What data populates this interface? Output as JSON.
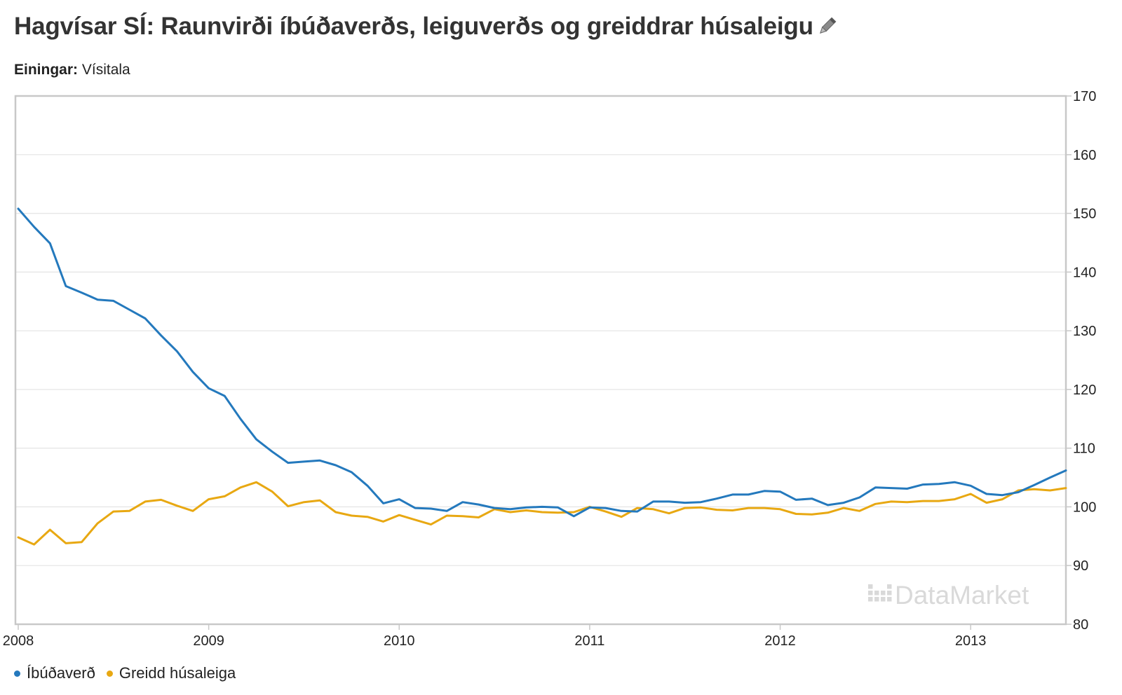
{
  "header": {
    "title": "Hagvísar SÍ: Raunvirði íbúðaverðs, leiguverðs og greiddrar húsaleigu",
    "units_label": "Einingar:",
    "units_value": "Vísitala",
    "edit_icon": "pencil-icon"
  },
  "watermark": {
    "text": "DataMarket",
    "icon": "datamarket-logo-icon"
  },
  "colors": {
    "series_1": "#2479bd",
    "series_2": "#e8a812",
    "grid": "#e6e6e6",
    "frame": "#c8c8c8",
    "watermark": "#d9d9d9"
  },
  "legend": [
    {
      "label": "Íbúðaverð"
    },
    {
      "label": "Greidd húsaleiga"
    }
  ],
  "chart_data": {
    "type": "line",
    "title": "Hagvísar SÍ: Raunvirði íbúðaverðs, leiguverðs og greiddrar húsaleigu",
    "xlabel": "",
    "ylabel": "Vísitala",
    "x_ticks": [
      "2008",
      "2009",
      "2010",
      "2011",
      "2012",
      "2013"
    ],
    "y_ticks": [
      80,
      90,
      100,
      110,
      120,
      130,
      140,
      150,
      160,
      170
    ],
    "ylim": [
      80,
      170
    ],
    "xlim": [
      "2008-01",
      "2013-07"
    ],
    "y_axis_side": "right",
    "grid": true,
    "legend_position": "bottom-left",
    "x": [
      "2008-01",
      "2008-02",
      "2008-03",
      "2008-04",
      "2008-05",
      "2008-06",
      "2008-07",
      "2008-08",
      "2008-09",
      "2008-10",
      "2008-11",
      "2008-12",
      "2009-01",
      "2009-02",
      "2009-03",
      "2009-04",
      "2009-05",
      "2009-06",
      "2009-07",
      "2009-08",
      "2009-09",
      "2009-10",
      "2009-11",
      "2009-12",
      "2010-01",
      "2010-02",
      "2010-03",
      "2010-04",
      "2010-05",
      "2010-06",
      "2010-07",
      "2010-08",
      "2010-09",
      "2010-10",
      "2010-11",
      "2010-12",
      "2011-01",
      "2011-02",
      "2011-03",
      "2011-04",
      "2011-05",
      "2011-06",
      "2011-07",
      "2011-08",
      "2011-09",
      "2011-10",
      "2011-11",
      "2011-12",
      "2012-01",
      "2012-02",
      "2012-03",
      "2012-04",
      "2012-05",
      "2012-06",
      "2012-07",
      "2012-08",
      "2012-09",
      "2012-10",
      "2012-11",
      "2012-12",
      "2013-01",
      "2013-02",
      "2013-03",
      "2013-04",
      "2013-05",
      "2013-06",
      "2013-07"
    ],
    "series": [
      {
        "name": "Íbúðaverð",
        "values": [
          150.8,
          147.7,
          144.9,
          137.6,
          136.5,
          135.3,
          135.1,
          133.6,
          132.1,
          129.2,
          126.5,
          123.0,
          120.2,
          118.9,
          115.0,
          111.5,
          109.4,
          107.5,
          107.7,
          107.9,
          107.1,
          105.9,
          103.6,
          100.6,
          101.3,
          99.8,
          99.7,
          99.3,
          100.8,
          100.4,
          99.8,
          99.6,
          99.9,
          100.0,
          99.9,
          98.4,
          99.9,
          99.8,
          99.3,
          99.2,
          100.9,
          100.9,
          100.7,
          100.8,
          101.4,
          102.1,
          102.1,
          102.7,
          102.6,
          101.2,
          101.4,
          100.3,
          100.7,
          101.6,
          103.3,
          103.2,
          103.1,
          103.8,
          103.9,
          104.2,
          103.6,
          102.2,
          102.0,
          102.5,
          103.7,
          105.0,
          106.2
        ]
      },
      {
        "name": "Greidd húsaleiga",
        "values": [
          94.8,
          93.6,
          96.1,
          93.8,
          94.0,
          97.2,
          99.2,
          99.3,
          100.9,
          101.2,
          100.2,
          99.3,
          101.3,
          101.8,
          103.3,
          104.2,
          102.6,
          100.1,
          100.8,
          101.1,
          99.1,
          98.5,
          98.3,
          97.5,
          98.6,
          97.8,
          97.0,
          98.5,
          98.4,
          98.2,
          99.6,
          99.1,
          99.4,
          99.1,
          99.0,
          99.1,
          100.0,
          99.2,
          98.3,
          99.8,
          99.6,
          98.9,
          99.8,
          99.9,
          99.5,
          99.4,
          99.8,
          99.8,
          99.6,
          98.8,
          98.7,
          99.0,
          99.8,
          99.3,
          100.5,
          100.9,
          100.8,
          101.0,
          101.0,
          101.3,
          102.2,
          100.7,
          101.3,
          102.8,
          103.0,
          102.8,
          103.2
        ]
      }
    ]
  }
}
